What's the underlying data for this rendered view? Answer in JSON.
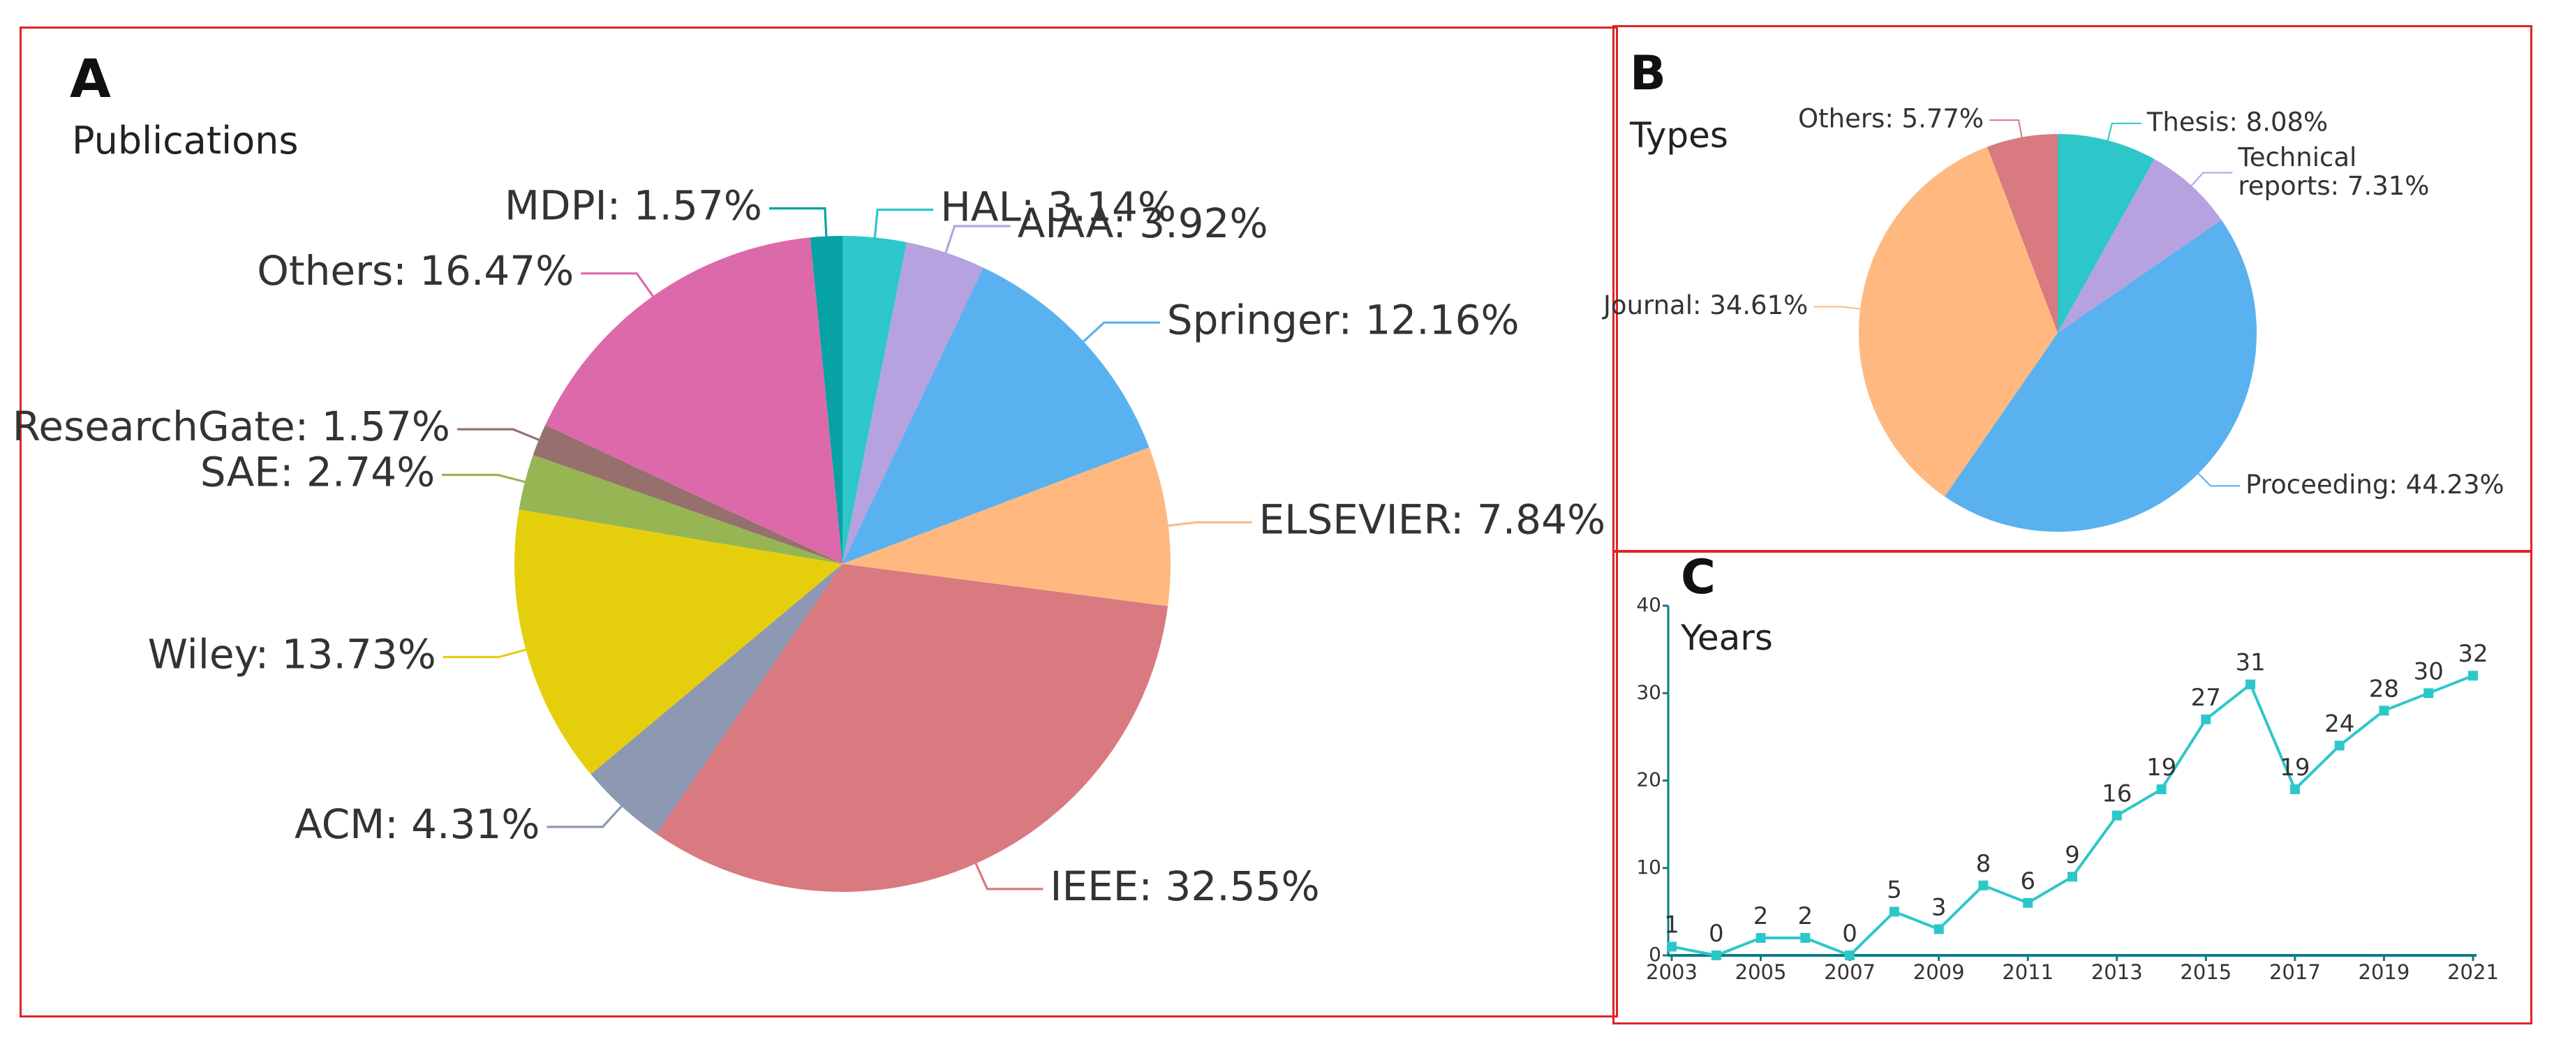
{
  "panels": {
    "a": {
      "letter": "A",
      "title": "Publications"
    },
    "b": {
      "letter": "B",
      "title": "Types"
    },
    "c": {
      "letter": "C",
      "title": "Years"
    }
  },
  "chart_data": [
    {
      "id": "publications",
      "type": "pie",
      "title": "Publications",
      "slices": [
        {
          "name": "HAL",
          "label": "HAL: 3.14%",
          "value": 3.14,
          "color": "#2ec7c9"
        },
        {
          "name": "AIAA",
          "label": "AIAA: 3.92%",
          "value": 3.92,
          "color": "#b6a2de"
        },
        {
          "name": "Springer",
          "label": "Springer: 12.16%",
          "value": 12.16,
          "color": "#5ab1ef"
        },
        {
          "name": "ELSEVIER",
          "label": "ELSEVIER: 7.84%",
          "value": 7.84,
          "color": "#ffb980"
        },
        {
          "name": "IEEE",
          "label": "IEEE: 32.55%",
          "value": 32.55,
          "color": "#d87a80"
        },
        {
          "name": "ACM",
          "label": "ACM: 4.31%",
          "value": 4.31,
          "color": "#8d98b3"
        },
        {
          "name": "Wiley",
          "label": "Wiley: 13.73%",
          "value": 13.73,
          "color": "#e5cf0d"
        },
        {
          "name": "SAE",
          "label": "SAE: 2.74%",
          "value": 2.74,
          "color": "#97b552"
        },
        {
          "name": "ResearchGate",
          "label": "ResearchGate: 1.57%",
          "value": 1.57,
          "color": "#95706d"
        },
        {
          "name": "Others",
          "label": "Others: 16.47%",
          "value": 16.47,
          "color": "#dc69aa"
        },
        {
          "name": "MDPI",
          "label": "MDPI: 1.57%",
          "value": 1.57,
          "color": "#07a2a4"
        }
      ]
    },
    {
      "id": "types",
      "type": "pie",
      "title": "Types",
      "slices": [
        {
          "name": "Thesis",
          "label": "Thesis: 8.08%",
          "value": 8.08,
          "color": "#2ec7c9"
        },
        {
          "name": "Technical reports",
          "label": "Technical reports: 7.31%",
          "label_lines": [
            "Technical",
            "reports: 7.31%"
          ],
          "value": 7.31,
          "color": "#b6a2de"
        },
        {
          "name": "Proceeding",
          "label": "Proceeding: 44.23%",
          "value": 44.23,
          "color": "#5ab1ef"
        },
        {
          "name": "Journal",
          "label": "Journal: 34.61%",
          "value": 34.61,
          "color": "#ffb980"
        },
        {
          "name": "Others",
          "label": "Others: 5.77%",
          "value": 5.77,
          "color": "#d87a80"
        }
      ]
    },
    {
      "id": "years",
      "type": "line",
      "title": "Years",
      "x": [
        2003,
        2004,
        2005,
        2006,
        2007,
        2008,
        2009,
        2010,
        2011,
        2012,
        2013,
        2014,
        2015,
        2016,
        2017,
        2018,
        2019,
        2020,
        2021
      ],
      "y": [
        1,
        0,
        2,
        2,
        0,
        5,
        3,
        8,
        6,
        9,
        16,
        19,
        27,
        31,
        19,
        24,
        28,
        30,
        32
      ],
      "xticks": [
        "2003",
        "2005",
        "2007",
        "2009",
        "2011",
        "2013",
        "2015",
        "2017",
        "2019",
        "2021"
      ],
      "yticks": [
        "0",
        "10",
        "20",
        "30",
        "40"
      ],
      "ylim": [
        0,
        40
      ],
      "color": "#2ec7c9",
      "axis_color": "#0e7c86"
    }
  ]
}
